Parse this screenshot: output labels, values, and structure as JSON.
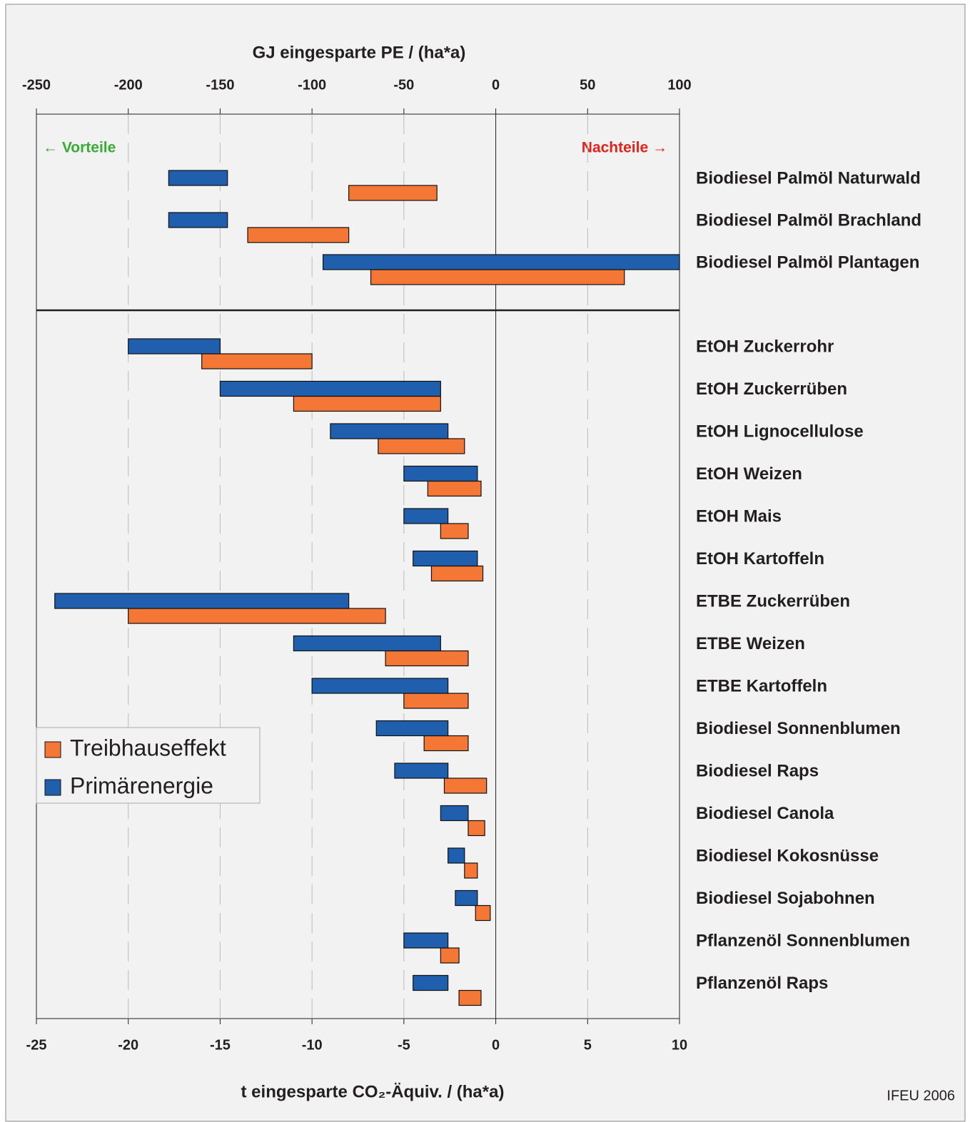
{
  "chart_data": {
    "type": "rangebar",
    "x_label": "t eingesparte CO₂-Äquiv. / (ha*a)",
    "x2_label": "GJ eingesparte PE / (ha*a)",
    "annotations": [
      "← Vorteile",
      "Nachteile →",
      "IFEU 2006"
    ],
    "categories": [
      "Biodiesel Palmöl Naturwald",
      "Biodiesel Palmöl Brachland",
      "Biodiesel Palmöl Plantagen",
      "EtOH Zuckerrohr",
      "EtOH Zuckerrüben",
      "EtOH Lignocellulose",
      "EtOH Weizen",
      "EtOH Mais",
      "EtOH Kartoffeln",
      "ETBE Zuckerrüben",
      "ETBE Weizen",
      "ETBE Kartoffeln",
      "Biodiesel Sonnenblumen",
      "Biodiesel Raps",
      "Biodiesel Canola",
      "Biodiesel Kokosnüsse",
      "Biodiesel Sojabohnen",
      "Pflanzenöl Sonnenblumen",
      "Pflanzenöl Raps"
    ],
    "series": [
      {
        "name": "Treibhauseffekt",
        "color": "#f47735",
        "axis": "x",
        "values": [
          [
            -8,
            -3.2
          ],
          [
            -13.5,
            -8
          ],
          [
            -6.8,
            7
          ],
          [
            -16,
            -10
          ],
          [
            -11,
            -3
          ],
          [
            -6.4,
            -1.7
          ],
          [
            -3.7,
            -0.8
          ],
          [
            -3,
            -1.5
          ],
          [
            -3.5,
            -0.7
          ],
          [
            -20,
            -6
          ],
          [
            -6,
            -1.5
          ],
          [
            -5,
            -1.5
          ],
          [
            -3.9,
            -1.5
          ],
          [
            -2.8,
            -0.5
          ],
          [
            -1.5,
            -0.6
          ],
          [
            -1.7,
            -1
          ],
          [
            -1.1,
            -0.3
          ],
          [
            -3,
            -2
          ],
          [
            -2,
            -0.8
          ]
        ]
      },
      {
        "name": "Primärenergie",
        "color": "#1f5fad",
        "axis": "x2",
        "values": [
          [
            -178,
            -146
          ],
          [
            -178,
            -146
          ],
          [
            -94,
            100
          ],
          [
            -200,
            -150
          ],
          [
            -150,
            -30
          ],
          [
            -90,
            -26
          ],
          [
            -50,
            -10
          ],
          [
            -50,
            -26
          ],
          [
            -45,
            -10
          ],
          [
            -240,
            -80
          ],
          [
            -110,
            -30
          ],
          [
            -100,
            -26
          ],
          [
            -65,
            -26
          ],
          [
            -55,
            -26
          ],
          [
            -30,
            -15
          ],
          [
            -26,
            -17
          ],
          [
            -22,
            -10
          ],
          [
            -50,
            -26
          ],
          [
            -45,
            -26
          ]
        ]
      }
    ],
    "xlim": [
      -25,
      10
    ],
    "xticks": [
      -25,
      -20,
      -15,
      -10,
      -5,
      0,
      5,
      10
    ],
    "x2lim": [
      -250,
      100
    ],
    "x2ticks": [
      -250,
      -200,
      -150,
      -100,
      -50,
      0,
      50,
      100
    ],
    "grid": true
  }
}
